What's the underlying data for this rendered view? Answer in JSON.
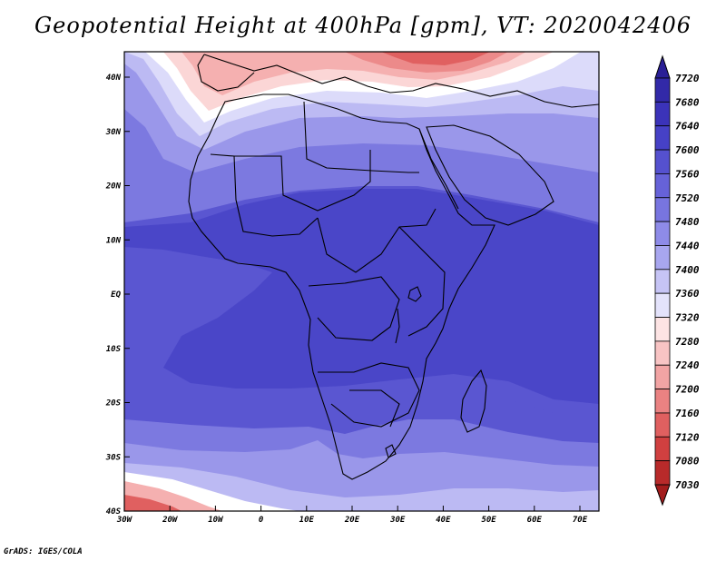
{
  "title": "Geopotential Height at 400hPa [gpm], VT: 2020042406",
  "credit": "GrADS: IGES/COLA",
  "lat_labels": [
    "40N",
    "30N",
    "20N",
    "10N",
    "EQ",
    "10S",
    "20S",
    "30S",
    "40S"
  ],
  "lon_labels": [
    "30W",
    "20W",
    "10W",
    "0",
    "10E",
    "20E",
    "30E",
    "40E",
    "50E",
    "60E",
    "70E"
  ],
  "colorbar": {
    "levels": [
      "7720",
      "7680",
      "7640",
      "7600",
      "7560",
      "7520",
      "7480",
      "7440",
      "7400",
      "7360",
      "7320",
      "7280",
      "7240",
      "7200",
      "7160",
      "7120",
      "7080",
      "7030"
    ],
    "colors": [
      "#2a1f96",
      "#3229a8",
      "#3b33b9",
      "#4641c6",
      "#5551cf",
      "#6662d8",
      "#7875e0",
      "#8e8be8",
      "#a8a6ef",
      "#c6c4f5",
      "#e4e3fb",
      "#fde4e4",
      "#f8c4c4",
      "#f2a4a4",
      "#ea8282",
      "#e06060",
      "#d04040",
      "#b82a2a",
      "#a21c1c"
    ]
  },
  "field_colors": {
    "ocean_deep": "#4a46c8",
    "land_mid": "#5a56d1",
    "band1": "#7c79e0",
    "band2": "#9a97ea",
    "band3": "#bcbaf3",
    "band4": "#dcdbfa",
    "white": "#ffffff",
    "pink1": "#fbd6d6",
    "pink2": "#f5b0b0",
    "red1": "#ec8a8a",
    "red2": "#e06060",
    "red3": "#d24040"
  }
}
